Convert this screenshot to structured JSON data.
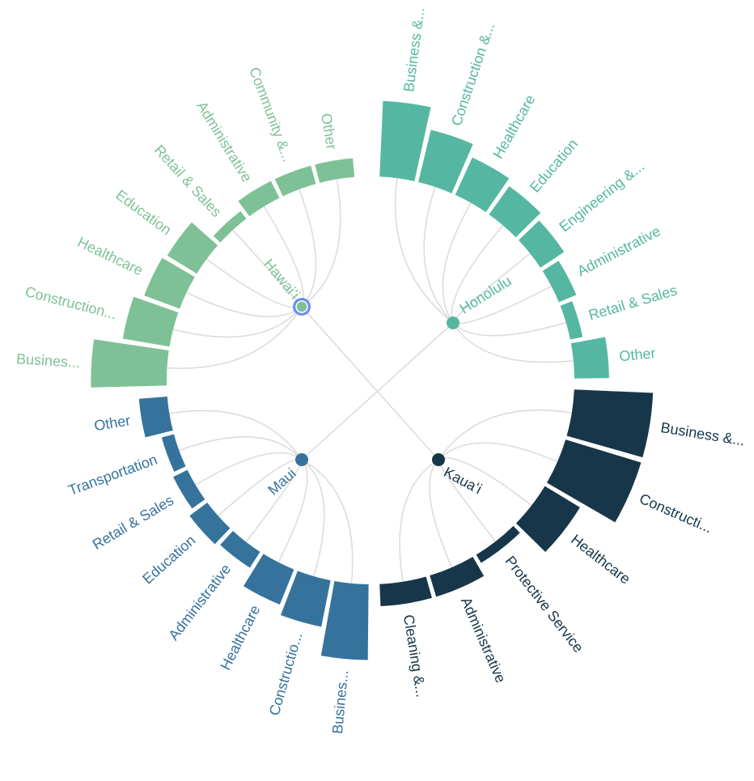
{
  "chart_data": {
    "type": "radial-bar",
    "title": "",
    "colors": {
      "Hawaiʻi": "#7fc197",
      "Honolulu": "#55b7a2",
      "Kauaʻi": "#17364a",
      "Maui": "#35739c",
      "link": "#dcdcdc",
      "selected_ring": "#6b8ff0"
    },
    "selected_hub": "Hawaiʻi",
    "series": [
      {
        "name": "Honolulu",
        "categories": [
          "Business &...",
          "Construction &...",
          "Healthcare",
          "Education",
          "Engineering &...",
          "Administrative",
          "Retail & Sales",
          "Other"
        ],
        "values": [
          24,
          17,
          13,
          11,
          9,
          6,
          4,
          11
        ]
      },
      {
        "name": "Kauaʻi",
        "categories": [
          "Business &...",
          "Constructi...",
          "Healthcare",
          "Protective Service",
          "Administrative",
          "Cleaning &..."
        ],
        "values": [
          25,
          25,
          13,
          3,
          7,
          7
        ]
      },
      {
        "name": "Maui",
        "categories": [
          "Busines...",
          "Constructio...",
          "Healthcare",
          "Administrative",
          "Education",
          "Retail & Sales",
          "Transportation",
          "Other"
        ],
        "values": [
          24,
          15,
          12,
          6,
          7,
          5,
          4,
          9
        ]
      },
      {
        "name": "Hawaiʻi",
        "categories": [
          "Busines...",
          "Construction...",
          "Healthcare",
          "Education",
          "Retail & Sales",
          "Administrative",
          "Community &...",
          "Other"
        ],
        "values": [
          24,
          15,
          12,
          11,
          3,
          6,
          6,
          6
        ]
      }
    ]
  }
}
